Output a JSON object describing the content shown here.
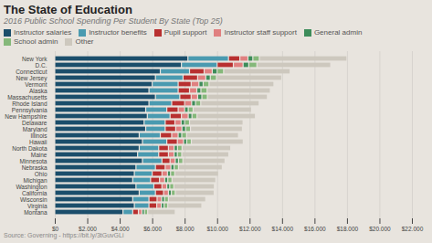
{
  "chart_data": {
    "type": "bar",
    "orientation": "horizontal",
    "stacked": true,
    "title": "The State of Education",
    "subtitle": "2016 Public School Spending Per Student By State (Top 25)",
    "source": "Source: Governing - https://bit.ly/3tGuvGLi",
    "categories": [
      "New York",
      "D.C.",
      "Connecticut",
      "New Jersey",
      "Vermont",
      "Alaska",
      "Massachusetts",
      "Rhode Island",
      "Pennsylvania",
      "New Hampshire",
      "Delaware",
      "Maryland",
      "Illinois",
      "Hawaii",
      "North Dakota",
      "Maine",
      "Minnesota",
      "Nebraska",
      "Ohio",
      "Michigan",
      "Washington",
      "California",
      "Wisconsin",
      "Virginia",
      "Montana"
    ],
    "series": [
      {
        "name": "Instructor salaries",
        "color": "#1b4e6b",
        "values": [
          8200,
          7800,
          6500,
          6200,
          6000,
          5800,
          6200,
          5800,
          5600,
          5700,
          5500,
          5600,
          5200,
          5400,
          5200,
          5100,
          5400,
          5000,
          4900,
          4800,
          5000,
          5200,
          4800,
          4900,
          4200
        ]
      },
      {
        "name": "Instructor benefits",
        "color": "#4a9ab0",
        "values": [
          2500,
          2200,
          1800,
          1700,
          1600,
          1800,
          1500,
          1400,
          1300,
          1400,
          1300,
          1200,
          1300,
          1500,
          1200,
          1300,
          1200,
          1200,
          1100,
          1100,
          1100,
          1000,
          1000,
          900,
          600
        ]
      },
      {
        "name": "Pupil support",
        "color": "#b83030",
        "values": [
          700,
          1000,
          900,
          900,
          800,
          700,
          700,
          800,
          700,
          700,
          600,
          650,
          700,
          650,
          600,
          600,
          500,
          600,
          600,
          550,
          500,
          500,
          500,
          480,
          350
        ]
      },
      {
        "name": "Instructor staff support",
        "color": "#e08080",
        "values": [
          500,
          600,
          500,
          500,
          480,
          450,
          400,
          430,
          400,
          420,
          380,
          380,
          400,
          380,
          350,
          350,
          320,
          350,
          340,
          320,
          300,
          300,
          280,
          280,
          220
        ]
      },
      {
        "name": "General admin",
        "color": "#3d8c5a",
        "values": [
          300,
          350,
          300,
          280,
          260,
          250,
          260,
          240,
          220,
          230,
          220,
          230,
          220,
          200,
          210,
          200,
          200,
          200,
          190,
          190,
          180,
          180,
          180,
          170,
          150
        ]
      },
      {
        "name": "School admin",
        "color": "#85b87a",
        "values": [
          400,
          500,
          400,
          380,
          360,
          380,
          340,
          320,
          300,
          310,
          300,
          300,
          300,
          280,
          280,
          270,
          270,
          270,
          260,
          260,
          250,
          240,
          240,
          230,
          200
        ]
      },
      {
        "name": "Other",
        "color": "#cdc8be",
        "values": [
          5400,
          4550,
          4100,
          4020,
          4000,
          3900,
          3700,
          3600,
          3600,
          3600,
          3300,
          3200,
          3200,
          3200,
          3000,
          2900,
          2600,
          2700,
          2700,
          2700,
          2500,
          2400,
          2300,
          2100,
          1700
        ]
      }
    ],
    "xlim": [
      0,
      22000
    ],
    "xticks": [
      {
        "value": 0,
        "label": "$0"
      },
      {
        "value": 2000,
        "label": "$2,000"
      },
      {
        "value": 4000,
        "label": "$4,000"
      },
      {
        "value": 6000,
        "label": "$6,000"
      },
      {
        "value": 8000,
        "label": "$8,000"
      },
      {
        "value": 10000,
        "label": "$10,000"
      },
      {
        "value": 12000,
        "label": "$12,000"
      },
      {
        "value": 14000,
        "label": "$14,000"
      },
      {
        "value": 16000,
        "label": "$16,000"
      },
      {
        "value": 18000,
        "label": "$18,000"
      },
      {
        "value": 20000,
        "label": "$20,000"
      },
      {
        "value": 22000,
        "label": "$22,000"
      }
    ],
    "grid": true,
    "legend": "top"
  }
}
